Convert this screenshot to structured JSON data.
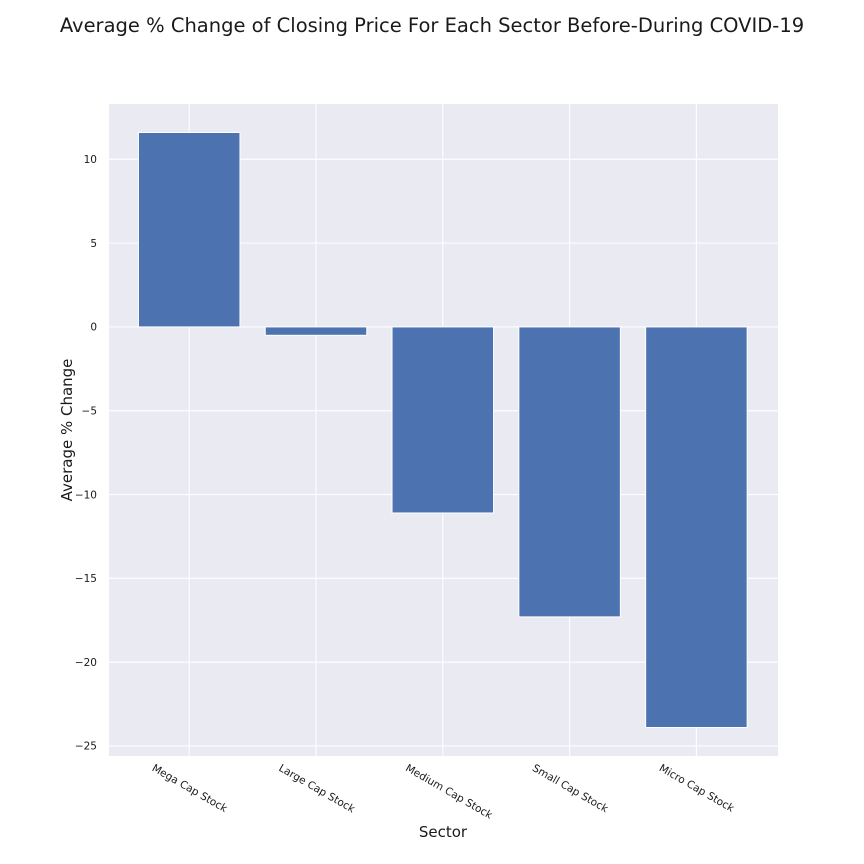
{
  "chart_data": {
    "type": "bar",
    "title": "Average % Change of Closing Price For Each Sector Before-During COVID-19",
    "xlabel": "Sector",
    "ylabel": "Average % Change",
    "categories": [
      "Mega Cap Stock",
      "Large Cap Stock",
      "Medium Cap Stock",
      "Small Cap Stock",
      "Micro Cap Stock"
    ],
    "values": [
      11.6,
      -0.5,
      -11.1,
      -17.3,
      -23.9
    ],
    "ylim": [
      -25.6,
      13.3
    ],
    "yticks": [
      10,
      5,
      0,
      -5,
      -10,
      -15,
      -20,
      -25
    ],
    "ytick_labels": [
      "10",
      "5",
      "0",
      "−5",
      "−10",
      "−15",
      "−20",
      "−25"
    ],
    "grid": true,
    "bar_color": "#4c72b0",
    "plot_background": "#eaeaf2",
    "grid_color": "#ffffff"
  }
}
